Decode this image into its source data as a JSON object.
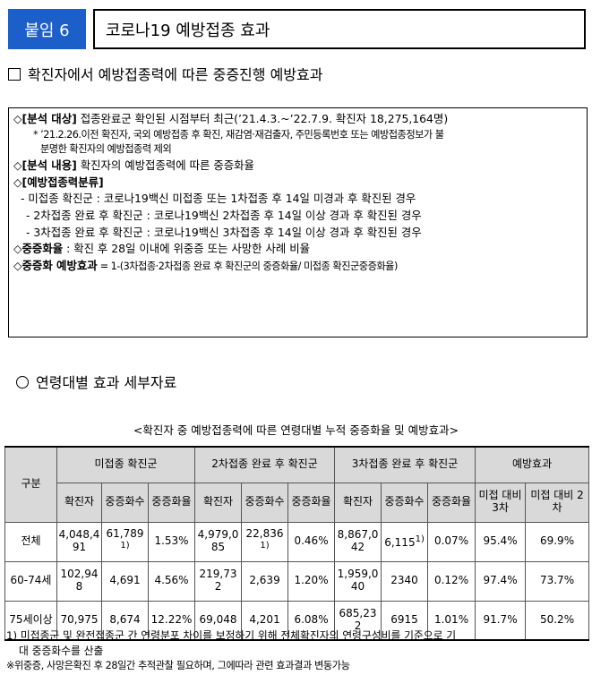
{
  "header": {
    "tag": "붙임 6",
    "title": "코로나19 예방접종 효과"
  },
  "section_title": "확진자에서 예방접종력에 따른 중증진행 예방효과",
  "info": {
    "r1_label": "[분석 대상]",
    "r1_text": " 접종완료군 확인된 시점부터 최근(’21.4.3.~’22.7.9. 확진자 18,275,164명)",
    "r2a": "* ’21.2.26.이전 확진자, 국외 예방접종 후 확진, 재감염·재검출자, 주민등록번호 또는 예방접종정보가 불",
    "r2b": "분명한 확진자의 예방접종력 제외",
    "r3_label": "[분석 내용]",
    "r3_text": " 확진자의 예방접종력에 따른 중증화율",
    "r4_label": "[예방접종력분류]",
    "g1": "- 미접종 확진군 : 코로나19백신 미접종 또는 1차접종 후 14일 미경과 후 확진된 경우",
    "g2": "- 2차접종 완료 후 확진군 : 코로나19백신 2차접종 후 14일 이상 경과 후 확진된 경우",
    "g3": "- 3차접종 완료 후 확진군 : 코로나19백신 3차접종 후 14일 이상 경과 후 확진된 경우",
    "r5_label": "중증화율",
    "r5_text": " : 확진 후 28일 이내에 위중증 또는 사망한 사례 비율",
    "r6_label": "중증화 예방효과",
    "r6_text": " = 1-(3차접종·2차접종 완료 후 확진군의 중증화율/ 미접종 확진군중증화율)"
  },
  "subsection_title": "연령대별 효과 세부자료",
  "table_caption": "<확진자 중 예방접종력에 따른 연령대별 누적 중증화율 및 예방효과>",
  "table": {
    "h_group": "구분",
    "h_unvax": "미접종 확진군",
    "h_dose2": "2차접종 완료 후 확진군",
    "h_dose3": "3차접종 완료 후 확진군",
    "h_effect": "예방효과",
    "h_cases": "확진자",
    "h_severe": "중증화수",
    "h_rate": "중증화율",
    "h_eff3": "미접 대비 3차",
    "h_eff2": "미접 대비 2차",
    "rows": [
      {
        "label": "전체",
        "u_cases": "4,048,491",
        "u_severe": "61,789",
        "u_sup": "1)",
        "u_rate": "1.53%",
        "d2_cases": "4,979,085",
        "d2_severe": "22,836",
        "d2_sup": "1)",
        "d2_rate": "0.46%",
        "d3_cases": "8,867,042",
        "d3_severe": "6,115",
        "d3_sup": "1)",
        "d3_rate": "0.07%",
        "eff3": "95.4%",
        "eff2": "69.9%"
      },
      {
        "label": "60-74세",
        "u_cases": "102,948",
        "u_severe": "4,691",
        "u_rate": "4.56%",
        "d2_cases": "219,732",
        "d2_severe": "2,639",
        "d2_rate": "1.20%",
        "d3_cases": "1,959,040",
        "d3_severe": "2340",
        "d3_rate": "0.12%",
        "eff3": "97.4%",
        "eff2": "73.7%"
      },
      {
        "label": "75세이상",
        "u_cases": "70,975",
        "u_severe": "8,674",
        "u_rate": "12.22%",
        "d2_cases": "69,048",
        "d2_severe": "4,201",
        "d2_rate": "6.08%",
        "d3_cases": "685,232",
        "d3_severe": "6915",
        "d3_rate": "1.01%",
        "eff3": "91.7%",
        "eff2": "50.2%"
      }
    ]
  },
  "notes": {
    "n1a": "1) 미접종군 및 완전접종군 간 연령분포 차이를 보정하기 위해 전체확진자의 연령구성비를 기준으로 기",
    "n1b": "대 중증화수를 산출",
    "n2": "※위중증, 사망은확진 후 28일간 추적관찰 필요하며, 그에따라 관련 효과결과 변동가능"
  }
}
